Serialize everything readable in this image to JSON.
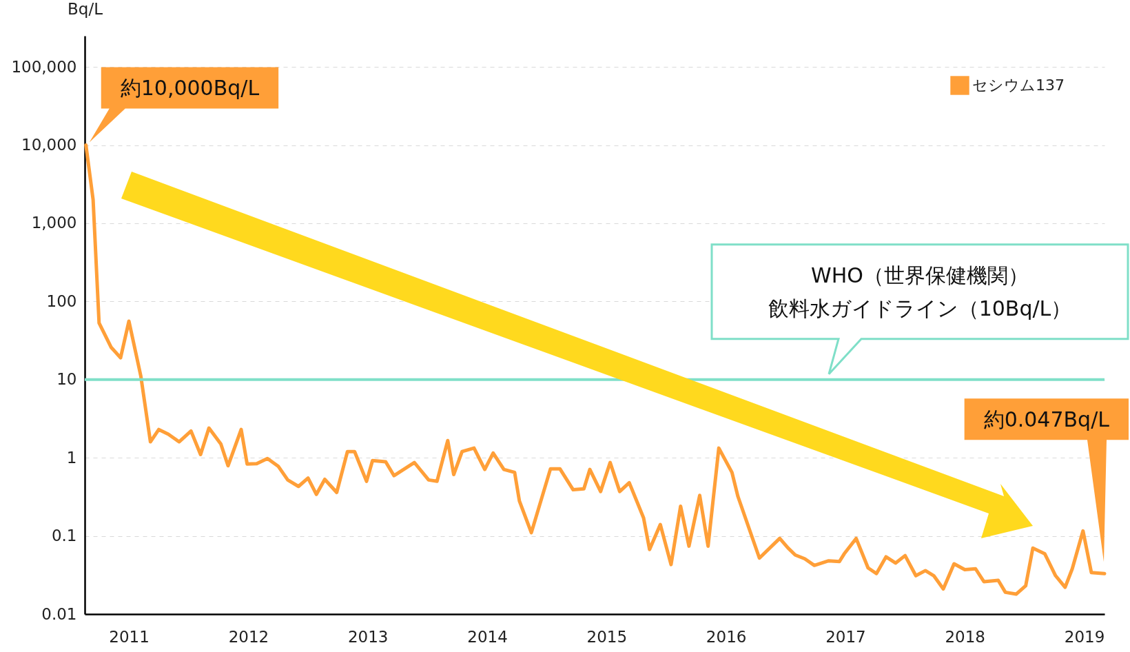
{
  "chart_data": {
    "type": "line",
    "ylabel": "Bq/L",
    "log": true,
    "grid": "y",
    "legend": "top right",
    "x": [
      2010.64,
      2010.7,
      2010.75,
      2010.85,
      2010.93,
      2011.0,
      2011.1,
      2011.18,
      2011.25,
      2011.33,
      2011.42,
      2011.52,
      2011.6,
      2011.67,
      2011.77,
      2011.83,
      2011.94,
      2011.99,
      2012.07,
      2012.16,
      2012.25,
      2012.33,
      2012.42,
      2012.5,
      2012.57,
      2012.64,
      2012.74,
      2012.83,
      2012.89,
      2012.99,
      2013.04,
      2013.15,
      2013.22,
      2013.39,
      2013.51,
      2013.58,
      2013.67,
      2013.72,
      2013.79,
      2013.89,
      2013.98,
      2014.05,
      2014.14,
      2014.23,
      2014.27,
      2014.37,
      2014.53,
      2014.61,
      2014.72,
      2014.81,
      2014.86,
      2014.95,
      2015.03,
      2015.11,
      2015.19,
      2015.31,
      2015.36,
      2015.45,
      2015.54,
      2015.62,
      2015.69,
      2015.78,
      2015.85,
      2015.94,
      2016.05,
      2016.1,
      2016.28,
      2016.45,
      2016.52,
      2016.58,
      2016.66,
      2016.74,
      2016.86,
      2016.95,
      2016.99,
      2017.09,
      2017.19,
      2017.26,
      2017.34,
      2017.42,
      2017.5,
      2017.59,
      2017.67,
      2017.74,
      2017.82,
      2017.91,
      2018.0,
      2018.09,
      2018.16,
      2018.28,
      2018.34,
      2018.43,
      2018.51,
      2018.57,
      2018.67,
      2018.76,
      2018.84,
      2018.9,
      2018.99,
      2019.06,
      2019.17
    ],
    "series": [
      {
        "name": "セシウム137",
        "color": "#ff9f38",
        "values": [
          10000,
          2000,
          53,
          26,
          19,
          56,
          11,
          1.6,
          2.3,
          2.0,
          1.6,
          2.2,
          1.1,
          2.4,
          1.5,
          0.79,
          2.3,
          0.83,
          0.84,
          0.98,
          0.78,
          0.52,
          0.43,
          0.55,
          0.34,
          0.53,
          0.36,
          1.2,
          1.2,
          0.5,
          0.92,
          0.89,
          0.59,
          0.87,
          0.52,
          0.5,
          1.66,
          0.61,
          1.2,
          1.33,
          0.71,
          1.15,
          0.71,
          0.65,
          0.28,
          0.11,
          0.72,
          0.72,
          0.39,
          0.4,
          0.71,
          0.37,
          0.87,
          0.37,
          0.48,
          0.17,
          0.067,
          0.14,
          0.043,
          0.24,
          0.074,
          0.33,
          0.074,
          1.33,
          0.65,
          0.32,
          0.052,
          0.093,
          0.07,
          0.057,
          0.051,
          0.042,
          0.048,
          0.047,
          0.059,
          0.093,
          0.039,
          0.033,
          0.054,
          0.045,
          0.056,
          0.031,
          0.036,
          0.031,
          0.021,
          0.044,
          0.037,
          0.038,
          0.026,
          0.027,
          0.019,
          0.018,
          0.023,
          0.07,
          0.059,
          0.031,
          0.022,
          0.038,
          0.116,
          0.034,
          0.033
        ]
      }
    ],
    "xlim": [
      2010.63,
      2019.17
    ],
    "xticks": [
      2011,
      2012,
      2013,
      2014,
      2015,
      2016,
      2017,
      2018,
      2019
    ],
    "ylim": [
      0.01,
      250000
    ],
    "yticks": [
      {
        "value": 0.01,
        "label": "0.01"
      },
      {
        "value": 0.1,
        "label": "0.1"
      },
      1,
      10,
      100,
      {
        "value": 1000,
        "label": "1,000"
      },
      {
        "value": 10000,
        "label": "10,000"
      },
      {
        "value": 100000,
        "label": "100,000"
      }
    ],
    "ref_lines": [
      {
        "axis": "y",
        "value": 10,
        "label": "WHO（世界保健機関）飲料水ガイドライン（10Bq/L）",
        "color": "#7fdfc8"
      }
    ],
    "annotations": [
      {
        "text": "約10,000Bq/L",
        "x": 2010.64,
        "y": 10000
      },
      "約0.047Bq/L"
    ]
  }
}
